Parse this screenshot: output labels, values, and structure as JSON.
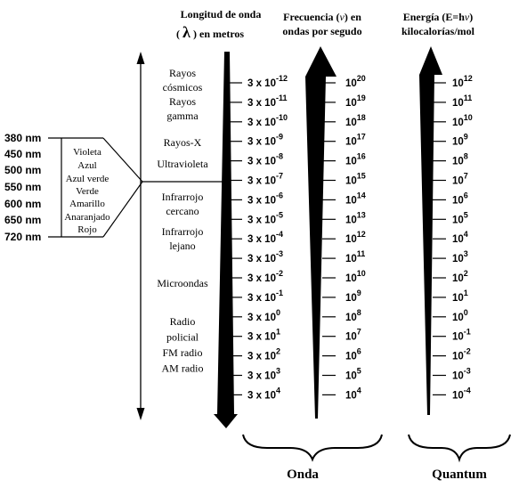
{
  "headers": {
    "wavelength_line1": "Longitud de onda",
    "wavelength_symbol": "λ",
    "wavelength_line2": ") en metros",
    "wavelength_open": "(",
    "frequency_line1": "Frecuencia (",
    "frequency_symbol": "v",
    "frequency_line1_end": ") en",
    "frequency_line2": "ondas por segudo",
    "energy_line1_start": "Energía (E=h",
    "energy_symbol": "v",
    "energy_line1_end": ")",
    "energy_line2": "kilocalorías/mol"
  },
  "visible_nm": [
    "380 nm",
    "450 nm",
    "500 nm",
    "550 nm",
    "600 nm",
    "650 nm",
    "720 nm"
  ],
  "visible_colors": [
    "Violeta",
    "Azul",
    "Azul verde",
    "Verde",
    "Amarillo",
    "Anaranjado",
    "Rojo"
  ],
  "regions": [
    {
      "lines": [
        "Rayos",
        "cósmicos"
      ]
    },
    {
      "lines": [
        "Rayos",
        "gamma"
      ]
    },
    {
      "lines": [
        "Rayos-X"
      ]
    },
    {
      "lines": [
        "Ultravioleta"
      ]
    },
    {
      "lines": [
        "Infrarrojo",
        "cercano"
      ]
    },
    {
      "lines": [
        "Infrarrojo",
        "lejano"
      ]
    },
    {
      "lines": [
        "Microondas"
      ]
    },
    {
      "lines": [
        "Radio",
        "policial",
        "FM radio",
        "AM radio"
      ]
    }
  ],
  "wavelength_base": "3 x 10",
  "wavelength_exponents": [
    "-12",
    "-11",
    "-10",
    "-9",
    "-8",
    "-7",
    "-6",
    "-5",
    "-4",
    "-3",
    "-2",
    "-1",
    "0",
    "1",
    "2",
    "3",
    "4"
  ],
  "frequency_base": "10",
  "frequency_exponents": [
    "20",
    "19",
    "18",
    "17",
    "16",
    "15",
    "14",
    "13",
    "12",
    "11",
    "10",
    "9",
    "8",
    "7",
    "6",
    "5",
    "4"
  ],
  "energy_base": "10",
  "energy_exponents": [
    "12",
    "11",
    "10",
    "9",
    "8",
    "7",
    "6",
    "5",
    "4",
    "3",
    "2",
    "1",
    "0",
    "-1",
    "-2",
    "-3",
    "-4"
  ],
  "footer": {
    "wave_label": "Onda",
    "quantum_label": "Quantum"
  }
}
